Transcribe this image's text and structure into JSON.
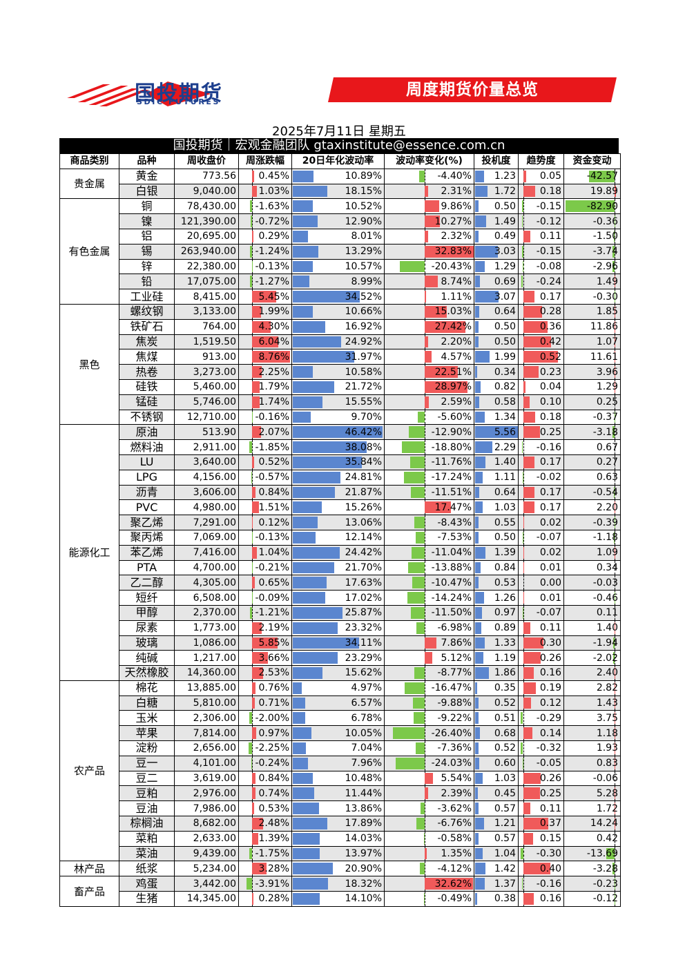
{
  "header": {
    "brand_name": "国投期货",
    "brand_sub": "SDIC FUTURES",
    "banner_title": "周度期货价量总览",
    "date": "2025年7月11日 星期五",
    "team": "国投期货｜宏观金融团队 gtaxinstitute@essence.com.cn"
  },
  "colors": {
    "positive": "#f05a5a",
    "negative": "#7cc94a",
    "bar_blue": "#5b86cf",
    "shade": "#e6e6e6",
    "brand": "#1d3f8e",
    "banner": "#e8171b"
  },
  "columns": [
    "商品类别",
    "品种",
    "周收盘价",
    "周涨跌幅",
    "20日年化波动率",
    "波动率变化(%)",
    "投机度",
    "趋势度",
    "资金变动"
  ],
  "rows": [
    {
      "cat": "贵金属",
      "span": 2,
      "name": "黄金",
      "price": "773.56",
      "chg": "0.45%",
      "chg_v": 0.45,
      "vol": "10.89%",
      "vol_v": 10.89,
      "vchg": "-4.40%",
      "vchg_v": -4.4,
      "spec": "1.23",
      "spec_v": 1.23,
      "trend": "0.05",
      "trend_v": 0.05,
      "fund": "-42.57",
      "fund_v": -42.57
    },
    {
      "name": "白银",
      "price": "9,040.00",
      "chg": "1.03%",
      "chg_v": 1.03,
      "vol": "18.15%",
      "vol_v": 18.15,
      "vchg": "2.31%",
      "vchg_v": 2.31,
      "spec": "1.72",
      "spec_v": 1.72,
      "trend": "0.18",
      "trend_v": 0.18,
      "fund": "19.89",
      "fund_v": 19.89
    },
    {
      "cat": "有色金属",
      "span": 7,
      "name": "铜",
      "price": "78,430.00",
      "chg": "-1.63%",
      "chg_v": -1.63,
      "vol": "10.52%",
      "vol_v": 10.52,
      "vchg": "9.86%",
      "vchg_v": 9.86,
      "spec": "0.50",
      "spec_v": 0.5,
      "trend": "-0.15",
      "trend_v": -0.15,
      "fund": "-82.90",
      "fund_v": -82.9
    },
    {
      "name": "镍",
      "price": "121,390.00",
      "chg": "-0.72%",
      "chg_v": -0.72,
      "vol": "12.90%",
      "vol_v": 12.9,
      "vchg": "10.27%",
      "vchg_v": 10.27,
      "spec": "1.49",
      "spec_v": 1.49,
      "trend": "-0.12",
      "trend_v": -0.12,
      "fund": "-0.36",
      "fund_v": -0.36
    },
    {
      "name": "铝",
      "price": "20,695.00",
      "chg": "0.29%",
      "chg_v": 0.29,
      "vol": "8.01%",
      "vol_v": 8.01,
      "vchg": "2.32%",
      "vchg_v": 2.32,
      "spec": "0.49",
      "spec_v": 0.49,
      "trend": "0.11",
      "trend_v": 0.11,
      "fund": "-1.50",
      "fund_v": -1.5
    },
    {
      "name": "锡",
      "price": "263,940.00",
      "chg": "-1.24%",
      "chg_v": -1.24,
      "vol": "13.29%",
      "vol_v": 13.29,
      "vchg": "32.83%",
      "vchg_v": 32.83,
      "spec": "3.03",
      "spec_v": 3.03,
      "trend": "-0.15",
      "trend_v": -0.15,
      "fund": "-3.74",
      "fund_v": -3.74
    },
    {
      "name": "锌",
      "price": "22,380.00",
      "chg": "-0.13%",
      "chg_v": -0.13,
      "vol": "10.57%",
      "vol_v": 10.57,
      "vchg": "-20.43%",
      "vchg_v": -20.43,
      "spec": "1.29",
      "spec_v": 1.29,
      "trend": "-0.08",
      "trend_v": -0.08,
      "fund": "-2.96",
      "fund_v": -2.96
    },
    {
      "name": "铅",
      "price": "17,075.00",
      "chg": "-1.27%",
      "chg_v": -1.27,
      "vol": "8.99%",
      "vol_v": 8.99,
      "vchg": "8.74%",
      "vchg_v": 8.74,
      "spec": "0.69",
      "spec_v": 0.69,
      "trend": "-0.24",
      "trend_v": -0.24,
      "fund": "1.49",
      "fund_v": 1.49
    },
    {
      "name": "工业硅",
      "price": "8,415.00",
      "chg": "5.45%",
      "chg_v": 5.45,
      "vol": "34.52%",
      "vol_v": 34.52,
      "vchg": "1.11%",
      "vchg_v": 1.11,
      "spec": "3.07",
      "spec_v": 3.07,
      "trend": "0.17",
      "trend_v": 0.17,
      "fund": "-0.30",
      "fund_v": -0.3
    },
    {
      "cat": "黑色",
      "span": 8,
      "name": "螺纹钢",
      "price": "3,133.00",
      "chg": "1.99%",
      "chg_v": 1.99,
      "vol": "10.66%",
      "vol_v": 10.66,
      "vchg": "15.03%",
      "vchg_v": 15.03,
      "spec": "0.64",
      "spec_v": 0.64,
      "trend": "0.28",
      "trend_v": 0.28,
      "fund": "1.85",
      "fund_v": 1.85
    },
    {
      "name": "铁矿石",
      "price": "764.00",
      "chg": "4.30%",
      "chg_v": 4.3,
      "vol": "16.92%",
      "vol_v": 16.92,
      "vchg": "27.42%",
      "vchg_v": 27.42,
      "spec": "0.50",
      "spec_v": 0.5,
      "trend": "0.36",
      "trend_v": 0.36,
      "fund": "11.86",
      "fund_v": 11.86
    },
    {
      "name": "焦炭",
      "price": "1,519.50",
      "chg": "6.04%",
      "chg_v": 6.04,
      "vol": "24.92%",
      "vol_v": 24.92,
      "vchg": "2.20%",
      "vchg_v": 2.2,
      "spec": "0.50",
      "spec_v": 0.5,
      "trend": "0.42",
      "trend_v": 0.42,
      "fund": "1.07",
      "fund_v": 1.07
    },
    {
      "name": "焦煤",
      "price": "913.00",
      "chg": "8.76%",
      "chg_v": 8.76,
      "vol": "31.97%",
      "vol_v": 31.97,
      "vchg": "4.57%",
      "vchg_v": 4.57,
      "spec": "1.99",
      "spec_v": 1.99,
      "trend": "0.52",
      "trend_v": 0.52,
      "fund": "11.61",
      "fund_v": 11.61
    },
    {
      "name": "热卷",
      "price": "3,273.00",
      "chg": "2.25%",
      "chg_v": 2.25,
      "vol": "10.58%",
      "vol_v": 10.58,
      "vchg": "22.51%",
      "vchg_v": 22.51,
      "spec": "0.34",
      "spec_v": 0.34,
      "trend": "0.23",
      "trend_v": 0.23,
      "fund": "3.96",
      "fund_v": 3.96
    },
    {
      "name": "硅铁",
      "price": "5,460.00",
      "chg": "1.79%",
      "chg_v": 1.79,
      "vol": "21.72%",
      "vol_v": 21.72,
      "vchg": "28.97%",
      "vchg_v": 28.97,
      "spec": "0.82",
      "spec_v": 0.82,
      "trend": "0.04",
      "trend_v": 0.04,
      "fund": "1.29",
      "fund_v": 1.29
    },
    {
      "name": "锰硅",
      "price": "5,746.00",
      "chg": "1.74%",
      "chg_v": 1.74,
      "vol": "15.55%",
      "vol_v": 15.55,
      "vchg": "2.59%",
      "vchg_v": 2.59,
      "spec": "0.58",
      "spec_v": 0.58,
      "trend": "0.10",
      "trend_v": 0.1,
      "fund": "0.25",
      "fund_v": 0.25
    },
    {
      "name": "不锈钢",
      "price": "12,710.00",
      "chg": "-0.16%",
      "chg_v": -0.16,
      "vol": "9.70%",
      "vol_v": 9.7,
      "vchg": "-5.60%",
      "vchg_v": -5.6,
      "spec": "1.34",
      "spec_v": 1.34,
      "trend": "0.18",
      "trend_v": 0.18,
      "fund": "-0.37",
      "fund_v": -0.37
    },
    {
      "cat": "能源化工",
      "span": 17,
      "name": "原油",
      "price": "513.90",
      "chg": "2.07%",
      "chg_v": 2.07,
      "vol": "46.42%",
      "vol_v": 46.42,
      "vchg": "-12.90%",
      "vchg_v": -12.9,
      "spec": "5.56",
      "spec_v": 5.56,
      "trend": "0.25",
      "trend_v": 0.25,
      "fund": "-3.18",
      "fund_v": -3.18
    },
    {
      "name": "燃料油",
      "price": "2,911.00",
      "chg": "-1.85%",
      "chg_v": -1.85,
      "vol": "38.08%",
      "vol_v": 38.08,
      "vchg": "-18.80%",
      "vchg_v": -18.8,
      "spec": "2.29",
      "spec_v": 2.29,
      "trend": "-0.16",
      "trend_v": -0.16,
      "fund": "0.67",
      "fund_v": 0.67
    },
    {
      "name": "LU",
      "price": "3,640.00",
      "chg": "0.52%",
      "chg_v": 0.52,
      "vol": "35.84%",
      "vol_v": 35.84,
      "vchg": "-11.76%",
      "vchg_v": -11.76,
      "spec": "1.40",
      "spec_v": 1.4,
      "trend": "0.17",
      "trend_v": 0.17,
      "fund": "0.27",
      "fund_v": 0.27
    },
    {
      "name": "LPG",
      "price": "4,156.00",
      "chg": "-0.57%",
      "chg_v": -0.57,
      "vol": "24.81%",
      "vol_v": 24.81,
      "vchg": "-17.24%",
      "vchg_v": -17.24,
      "spec": "1.11",
      "spec_v": 1.11,
      "trend": "-0.02",
      "trend_v": -0.02,
      "fund": "0.63",
      "fund_v": 0.63
    },
    {
      "name": "沥青",
      "price": "3,606.00",
      "chg": "0.84%",
      "chg_v": 0.84,
      "vol": "21.87%",
      "vol_v": 21.87,
      "vchg": "-11.51%",
      "vchg_v": -11.51,
      "spec": "0.64",
      "spec_v": 0.64,
      "trend": "0.17",
      "trend_v": 0.17,
      "fund": "-0.54",
      "fund_v": -0.54
    },
    {
      "name": "PVC",
      "price": "4,980.00",
      "chg": "1.51%",
      "chg_v": 1.51,
      "vol": "15.26%",
      "vol_v": 15.26,
      "vchg": "17.47%",
      "vchg_v": 17.47,
      "spec": "1.03",
      "spec_v": 1.03,
      "trend": "0.17",
      "trend_v": 0.17,
      "fund": "2.20",
      "fund_v": 2.2
    },
    {
      "name": "聚乙烯",
      "price": "7,291.00",
      "chg": "0.12%",
      "chg_v": 0.12,
      "vol": "13.06%",
      "vol_v": 13.06,
      "vchg": "-8.43%",
      "vchg_v": -8.43,
      "spec": "0.55",
      "spec_v": 0.55,
      "trend": "0.02",
      "trend_v": 0.02,
      "fund": "-0.39",
      "fund_v": -0.39
    },
    {
      "name": "聚丙烯",
      "price": "7,069.00",
      "chg": "-0.13%",
      "chg_v": -0.13,
      "vol": "12.14%",
      "vol_v": 12.14,
      "vchg": "-7.53%",
      "vchg_v": -7.53,
      "spec": "0.50",
      "spec_v": 0.5,
      "trend": "-0.07",
      "trend_v": -0.07,
      "fund": "-1.18",
      "fund_v": -1.18
    },
    {
      "name": "苯乙烯",
      "price": "7,416.00",
      "chg": "1.04%",
      "chg_v": 1.04,
      "vol": "24.42%",
      "vol_v": 24.42,
      "vchg": "-11.04%",
      "vchg_v": -11.04,
      "spec": "1.39",
      "spec_v": 1.39,
      "trend": "0.02",
      "trend_v": 0.02,
      "fund": "1.09",
      "fund_v": 1.09
    },
    {
      "name": "PTA",
      "price": "4,700.00",
      "chg": "-0.21%",
      "chg_v": -0.21,
      "vol": "21.70%",
      "vol_v": 21.7,
      "vchg": "-13.88%",
      "vchg_v": -13.88,
      "spec": "0.84",
      "spec_v": 0.84,
      "trend": "0.01",
      "trend_v": 0.01,
      "fund": "0.34",
      "fund_v": 0.34
    },
    {
      "name": "乙二醇",
      "price": "4,305.00",
      "chg": "0.65%",
      "chg_v": 0.65,
      "vol": "17.63%",
      "vol_v": 17.63,
      "vchg": "-10.47%",
      "vchg_v": -10.47,
      "spec": "0.53",
      "spec_v": 0.53,
      "trend": "0.00",
      "trend_v": 0.0,
      "fund": "-0.03",
      "fund_v": -0.03
    },
    {
      "name": "短纤",
      "price": "6,508.00",
      "chg": "-0.09%",
      "chg_v": -0.09,
      "vol": "17.02%",
      "vol_v": 17.02,
      "vchg": "-14.24%",
      "vchg_v": -14.24,
      "spec": "1.26",
      "spec_v": 1.26,
      "trend": "0.01",
      "trend_v": 0.01,
      "fund": "-0.46",
      "fund_v": -0.46
    },
    {
      "name": "甲醇",
      "price": "2,370.00",
      "chg": "-1.21%",
      "chg_v": -1.21,
      "vol": "25.87%",
      "vol_v": 25.87,
      "vchg": "-11.50%",
      "vchg_v": -11.5,
      "spec": "0.97",
      "spec_v": 0.97,
      "trend": "-0.07",
      "trend_v": -0.07,
      "fund": "0.11",
      "fund_v": 0.11
    },
    {
      "name": "尿素",
      "price": "1,773.00",
      "chg": "2.19%",
      "chg_v": 2.19,
      "vol": "23.32%",
      "vol_v": 23.32,
      "vchg": "-6.98%",
      "vchg_v": -6.98,
      "spec": "0.89",
      "spec_v": 0.89,
      "trend": "0.11",
      "trend_v": 0.11,
      "fund": "1.40",
      "fund_v": 1.4
    },
    {
      "name": "玻璃",
      "price": "1,086.00",
      "chg": "5.85%",
      "chg_v": 5.85,
      "vol": "34.11%",
      "vol_v": 34.11,
      "vchg": "7.86%",
      "vchg_v": 7.86,
      "spec": "1.33",
      "spec_v": 1.33,
      "trend": "0.30",
      "trend_v": 0.3,
      "fund": "-1.94",
      "fund_v": -1.94
    },
    {
      "name": "纯碱",
      "price": "1,217.00",
      "chg": "3.66%",
      "chg_v": 3.66,
      "vol": "23.29%",
      "vol_v": 23.29,
      "vchg": "5.12%",
      "vchg_v": 5.12,
      "spec": "1.19",
      "spec_v": 1.19,
      "trend": "0.26",
      "trend_v": 0.26,
      "fund": "-2.02",
      "fund_v": -2.02
    },
    {
      "name": "天然橡胶",
      "price": "14,360.00",
      "chg": "2.53%",
      "chg_v": 2.53,
      "vol": "15.62%",
      "vol_v": 15.62,
      "vchg": "-8.77%",
      "vchg_v": -8.77,
      "spec": "1.86",
      "spec_v": 1.86,
      "trend": "0.16",
      "trend_v": 0.16,
      "fund": "2.40",
      "fund_v": 2.4
    },
    {
      "cat": "农产品",
      "span": 12,
      "name": "棉花",
      "price": "13,885.00",
      "chg": "0.76%",
      "chg_v": 0.76,
      "vol": "4.97%",
      "vol_v": 4.97,
      "vchg": "-16.47%",
      "vchg_v": -16.47,
      "spec": "0.35",
      "spec_v": 0.35,
      "trend": "0.19",
      "trend_v": 0.19,
      "fund": "2.82",
      "fund_v": 2.82
    },
    {
      "name": "白糖",
      "price": "5,810.00",
      "chg": "0.71%",
      "chg_v": 0.71,
      "vol": "6.57%",
      "vol_v": 6.57,
      "vchg": "-9.88%",
      "vchg_v": -9.88,
      "spec": "0.52",
      "spec_v": 0.52,
      "trend": "0.12",
      "trend_v": 0.12,
      "fund": "1.43",
      "fund_v": 1.43
    },
    {
      "name": "玉米",
      "price": "2,306.00",
      "chg": "-2.00%",
      "chg_v": -2.0,
      "vol": "6.78%",
      "vol_v": 6.78,
      "vchg": "-9.22%",
      "vchg_v": -9.22,
      "spec": "0.51",
      "spec_v": 0.51,
      "trend": "-0.29",
      "trend_v": -0.29,
      "fund": "3.75",
      "fund_v": 3.75
    },
    {
      "name": "苹果",
      "price": "7,814.00",
      "chg": "0.97%",
      "chg_v": 0.97,
      "vol": "10.05%",
      "vol_v": 10.05,
      "vchg": "-26.40%",
      "vchg_v": -26.4,
      "spec": "0.68",
      "spec_v": 0.68,
      "trend": "0.14",
      "trend_v": 0.14,
      "fund": "1.18",
      "fund_v": 1.18
    },
    {
      "name": "淀粉",
      "price": "2,656.00",
      "chg": "-2.25%",
      "chg_v": -2.25,
      "vol": "7.04%",
      "vol_v": 7.04,
      "vchg": "-7.36%",
      "vchg_v": -7.36,
      "spec": "0.52",
      "spec_v": 0.52,
      "trend": "-0.32",
      "trend_v": -0.32,
      "fund": "1.93",
      "fund_v": 1.93
    },
    {
      "name": "豆一",
      "price": "4,101.00",
      "chg": "-0.24%",
      "chg_v": -0.24,
      "vol": "7.96%",
      "vol_v": 7.96,
      "vchg": "-24.03%",
      "vchg_v": -24.03,
      "spec": "0.60",
      "spec_v": 0.6,
      "trend": "-0.05",
      "trend_v": -0.05,
      "fund": "0.83",
      "fund_v": 0.83
    },
    {
      "name": "豆二",
      "price": "3,619.00",
      "chg": "0.84%",
      "chg_v": 0.84,
      "vol": "10.48%",
      "vol_v": 10.48,
      "vchg": "5.54%",
      "vchg_v": 5.54,
      "spec": "1.03",
      "spec_v": 1.03,
      "trend": "0.26",
      "trend_v": 0.26,
      "fund": "-0.06",
      "fund_v": -0.06
    },
    {
      "name": "豆粕",
      "price": "2,976.00",
      "chg": "0.74%",
      "chg_v": 0.74,
      "vol": "11.44%",
      "vol_v": 11.44,
      "vchg": "2.39%",
      "vchg_v": 2.39,
      "spec": "0.45",
      "spec_v": 0.45,
      "trend": "0.25",
      "trend_v": 0.25,
      "fund": "5.28",
      "fund_v": 5.28
    },
    {
      "name": "豆油",
      "price": "7,986.00",
      "chg": "0.53%",
      "chg_v": 0.53,
      "vol": "13.86%",
      "vol_v": 13.86,
      "vchg": "-3.62%",
      "vchg_v": -3.62,
      "spec": "0.57",
      "spec_v": 0.57,
      "trend": "0.11",
      "trend_v": 0.11,
      "fund": "1.72",
      "fund_v": 1.72
    },
    {
      "name": "棕榈油",
      "price": "8,682.00",
      "chg": "2.48%",
      "chg_v": 2.48,
      "vol": "17.89%",
      "vol_v": 17.89,
      "vchg": "-6.76%",
      "vchg_v": -6.76,
      "spec": "1.21",
      "spec_v": 1.21,
      "trend": "0.37",
      "trend_v": 0.37,
      "fund": "14.24",
      "fund_v": 14.24
    },
    {
      "name": "菜粕",
      "price": "2,633.00",
      "chg": "1.39%",
      "chg_v": 1.39,
      "vol": "14.03%",
      "vol_v": 14.03,
      "vchg": "-0.58%",
      "vchg_v": -0.58,
      "spec": "0.57",
      "spec_v": 0.57,
      "trend": "0.15",
      "trend_v": 0.15,
      "fund": "0.42",
      "fund_v": 0.42
    },
    {
      "name": "菜油",
      "price": "9,439.00",
      "chg": "-1.75%",
      "chg_v": -1.75,
      "vol": "13.97%",
      "vol_v": 13.97,
      "vchg": "1.35%",
      "vchg_v": 1.35,
      "spec": "1.04",
      "spec_v": 1.04,
      "trend": "-0.30",
      "trend_v": -0.3,
      "fund": "-13.69",
      "fund_v": -13.69
    },
    {
      "cat": "林产品",
      "span": 1,
      "name": "纸浆",
      "price": "5,234.00",
      "chg": "3.28%",
      "chg_v": 3.28,
      "vol": "20.90%",
      "vol_v": 20.9,
      "vchg": "-4.12%",
      "vchg_v": -4.12,
      "spec": "1.42",
      "spec_v": 1.42,
      "trend": "0.40",
      "trend_v": 0.4,
      "fund": "-3.28",
      "fund_v": -3.28
    },
    {
      "cat": "畜产品",
      "span": 2,
      "name": "鸡蛋",
      "price": "3,442.00",
      "chg": "-3.91%",
      "chg_v": -3.91,
      "vol": "18.32%",
      "vol_v": 18.32,
      "vchg": "32.62%",
      "vchg_v": 32.62,
      "spec": "1.37",
      "spec_v": 1.37,
      "trend": "-0.16",
      "trend_v": -0.16,
      "fund": "-0.23",
      "fund_v": -0.23
    },
    {
      "name": "生猪",
      "price": "14,345.00",
      "chg": "0.28%",
      "chg_v": 0.28,
      "vol": "14.10%",
      "vol_v": 14.1,
      "vchg": "-0.49%",
      "vchg_v": -0.49,
      "spec": "0.38",
      "spec_v": 0.38,
      "trend": "0.16",
      "trend_v": 0.16,
      "fund": "-0.12",
      "fund_v": -0.12
    }
  ]
}
